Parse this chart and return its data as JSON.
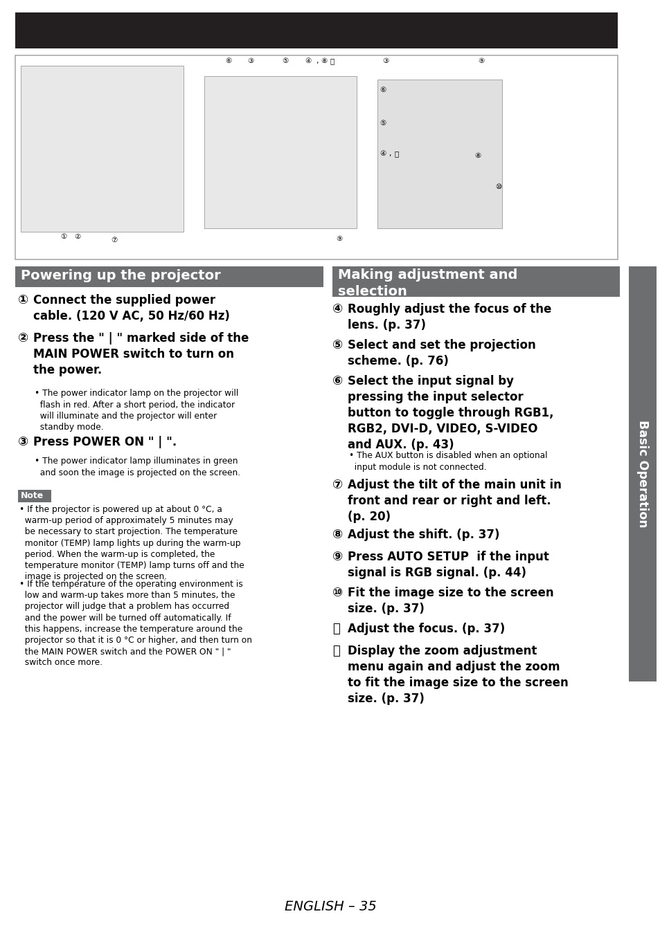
{
  "page_bg": "#ffffff",
  "header_bg": "#231f20",
  "section1_header_bg": "#6d6e70",
  "section1_header_text": "Powering up the projector",
  "section2_header_bg": "#6d6e70",
  "section2_header_text": "Making adjustment and\nselection",
  "note_bg": "#6d6e70",
  "sidebar_bg": "#6d6e70",
  "sidebar_text": "Basic Operation",
  "page_number_text": "ENGLISH – 35"
}
